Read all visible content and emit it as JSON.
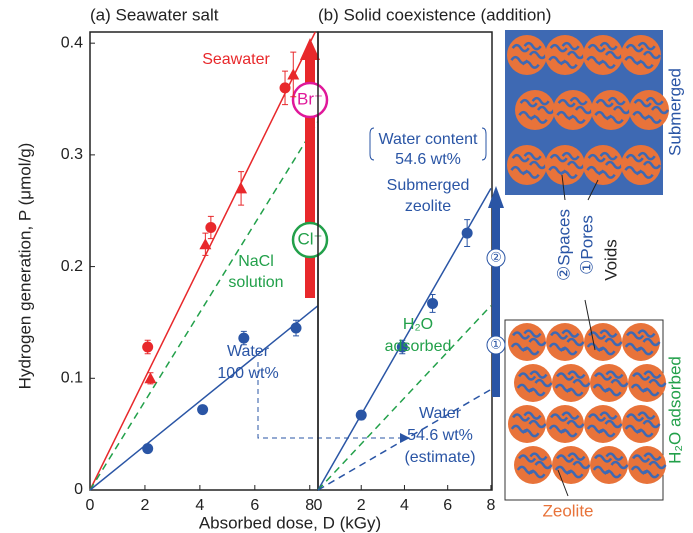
{
  "chart_data": [
    {
      "type": "scatter",
      "title": "(a) Seawater salt",
      "ylabel": "Hydrogen generation, P (μmol/g)",
      "xlabel": "Absorbed dose, D (kGy)",
      "xlim": [
        0,
        8.3
      ],
      "ylim": [
        0,
        0.41
      ],
      "xticks": [
        0,
        2,
        4,
        6,
        8
      ],
      "yticks": [
        0,
        0.1,
        0.2,
        0.3,
        0.4
      ],
      "series": [
        {
          "marker": "circle",
          "color": "#e8282b",
          "x": [
            2.1,
            4.4,
            7.1
          ],
          "values": [
            0.128,
            0.235,
            0.36
          ],
          "errors": [
            0.006,
            0.01,
            0.015
          ]
        },
        {
          "marker": "triangle",
          "color": "#e8282b",
          "x": [
            2.2,
            4.2,
            5.5,
            7.4
          ],
          "values": [
            0.1,
            0.22,
            0.27,
            0.372
          ],
          "errors": [
            0.005,
            0.01,
            0.015,
            0.02
          ]
        },
        {
          "marker": "circle",
          "color": "#2a55a5",
          "x": [
            2.1,
            4.1,
            5.6,
            7.5
          ],
          "values": [
            0.037,
            0.072,
            0.136,
            0.145
          ],
          "errors": [
            0.003,
            0.003,
            0.006,
            0.007
          ]
        }
      ],
      "fits": [
        {
          "color": "#e8282b",
          "dash": false,
          "x": [
            0,
            8.2
          ],
          "values": [
            0,
            0.41
          ]
        },
        {
          "color": "#22a04a",
          "dash": true,
          "x": [
            0,
            8.3
          ],
          "values": [
            0,
            0.33
          ]
        },
        {
          "color": "#2a55a5",
          "dash": false,
          "x": [
            0,
            8.3
          ],
          "values": [
            0,
            0.165
          ]
        }
      ],
      "annotations": [
        {
          "text": "Seawater",
          "color": "#e8282b"
        },
        {
          "text": "NaCl",
          "color": "#22a04a"
        },
        {
          "text": "solution",
          "color": "#22a04a"
        },
        {
          "text": "Water",
          "color": "#2a55a5"
        },
        {
          "text": "100 wt%",
          "color": "#2a55a5"
        },
        {
          "text": "Br⁻",
          "color": "#e0189a"
        },
        {
          "text": "Cl⁻",
          "color": "#22a04a"
        }
      ]
    },
    {
      "type": "scatter",
      "title": "(b) Solid coexistence (addition)",
      "xlim": [
        0,
        8.05
      ],
      "ylim": [
        0,
        0.41
      ],
      "xticks": [
        0,
        2,
        4,
        6,
        8
      ],
      "series": [
        {
          "marker": "circle",
          "color": "#2a55a5",
          "x": [
            2,
            3.9,
            5.3,
            6.9
          ],
          "values": [
            0.067,
            0.128,
            0.167,
            0.23
          ],
          "errors": [
            0.004,
            0.006,
            0.008,
            0.012
          ]
        }
      ],
      "fits": [
        {
          "color": "#2a55a5",
          "dash": false,
          "x": [
            0,
            8
          ],
          "values": [
            0,
            0.27
          ]
        },
        {
          "color": "#22a04a",
          "dash": true,
          "x": [
            0,
            8
          ],
          "values": [
            0,
            0.165
          ]
        },
        {
          "color": "#2a55a5",
          "dash": true,
          "x": [
            0,
            8
          ],
          "values": [
            0,
            0.09
          ]
        }
      ],
      "annotations": [
        {
          "text": "Water content",
          "color": "#2a55a5"
        },
        {
          "text": "54.6 wt%",
          "color": "#2a55a5"
        },
        {
          "text": "Submerged",
          "color": "#2a55a5"
        },
        {
          "text": "zeolite",
          "color": "#2a55a5"
        },
        {
          "text": "H₂O",
          "color": "#22a04a"
        },
        {
          "text": "adsorbed",
          "color": "#22a04a"
        },
        {
          "text": "Water",
          "color": "#2a55a5"
        },
        {
          "text": "54.6 wt%",
          "color": "#2a55a5"
        },
        {
          "text": "(estimate)",
          "color": "#2a55a5"
        },
        {
          "text": "②",
          "color": "#2a55a5"
        },
        {
          "text": "①",
          "color": "#2a55a5"
        }
      ]
    }
  ],
  "illustration": {
    "submerged": "Submerged",
    "spaces": "②Spaces",
    "pores": "①Pores",
    "voids": "Voids",
    "h2o_adsorbed": "H₂O adsorbed",
    "zeolite": "Zeolite"
  }
}
